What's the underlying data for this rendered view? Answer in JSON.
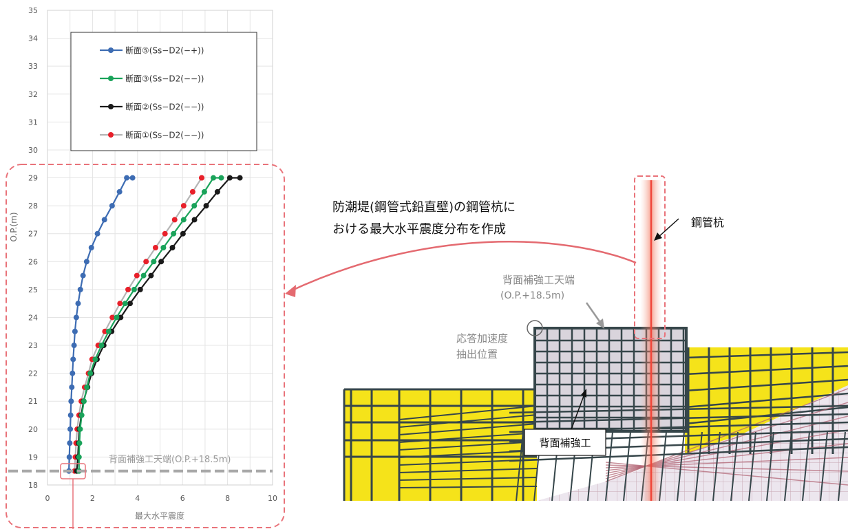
{
  "chart_data": {
    "type": "line",
    "xlabel": "最大水平震度",
    "ylabel": "O.P.(m)",
    "xlim": [
      0,
      10
    ],
    "ylim": [
      18,
      35
    ],
    "xticks": [
      0,
      2,
      4,
      6,
      8,
      10
    ],
    "yticks": [
      18,
      19,
      20,
      21,
      22,
      23,
      24,
      25,
      26,
      27,
      28,
      29,
      30,
      31,
      32,
      33,
      34,
      35
    ],
    "grid": true,
    "legend_position": "top-center",
    "series": [
      {
        "name": "断面⑤(Ss−D2(−+))",
        "color": "#3d6cb3",
        "marker_color": "#3d6cb3",
        "x": [
          0.95,
          0.97,
          0.99,
          1.01,
          1.03,
          1.05,
          1.08,
          1.11,
          1.14,
          1.18,
          1.22,
          1.28,
          1.36,
          1.46,
          1.58,
          1.74,
          1.95,
          2.22,
          2.53,
          2.87,
          3.2,
          3.52,
          3.78
        ],
        "y": [
          18.5,
          19.0,
          19.5,
          20.0,
          20.5,
          21.0,
          21.5,
          22.0,
          22.5,
          23.0,
          23.5,
          24.0,
          24.5,
          25.0,
          25.5,
          26.0,
          26.5,
          27.0,
          27.5,
          28.0,
          28.5,
          29.0,
          29.0
        ]
      },
      {
        "name": "断面③(Ss−D2(−−))",
        "color": "#1aa35a",
        "marker_color": "#1aa35a",
        "x": [
          1.4,
          1.4,
          1.42,
          1.45,
          1.52,
          1.62,
          1.75,
          1.9,
          2.12,
          2.4,
          2.72,
          3.07,
          3.45,
          3.85,
          4.27,
          4.72,
          5.15,
          5.6,
          6.05,
          6.52,
          6.97,
          7.37,
          7.72
        ],
        "y": [
          18.5,
          19.0,
          19.5,
          20.0,
          20.5,
          21.0,
          21.5,
          22.0,
          22.5,
          23.0,
          23.5,
          24.0,
          24.5,
          25.0,
          25.5,
          26.0,
          26.5,
          27.0,
          27.5,
          28.0,
          28.5,
          29.0,
          29.0
        ]
      },
      {
        "name": "断面②(Ss−D2(−−))",
        "color": "#1a1a1a",
        "marker_color": "#1a1a1a",
        "x": [
          1.3,
          1.35,
          1.38,
          1.42,
          1.5,
          1.6,
          1.78,
          1.96,
          2.2,
          2.5,
          2.85,
          3.25,
          3.67,
          4.12,
          4.6,
          5.05,
          5.55,
          6.02,
          6.53,
          7.05,
          7.55,
          8.1,
          8.55
        ],
        "y": [
          18.5,
          19.0,
          19.5,
          20.0,
          20.5,
          21.0,
          21.5,
          22.0,
          22.5,
          23.0,
          23.5,
          24.0,
          24.5,
          25.0,
          25.5,
          26.0,
          26.5,
          27.0,
          27.5,
          28.0,
          28.5,
          29.0,
          29.0
        ]
      },
      {
        "name": "断面①(Ss−D2(−−))",
        "color": "#b4b4b4",
        "marker_color": "#e8202a",
        "x": [
          1.2,
          1.24,
          1.27,
          1.32,
          1.4,
          1.5,
          1.65,
          1.82,
          1.98,
          2.25,
          2.55,
          2.88,
          3.22,
          3.58,
          3.97,
          4.38,
          4.8,
          5.22,
          5.65,
          6.05,
          6.45,
          6.85,
          6.85
        ],
        "y": [
          18.5,
          19.0,
          19.5,
          20.0,
          20.5,
          21.0,
          21.5,
          22.0,
          22.5,
          23.0,
          23.5,
          24.0,
          24.5,
          25.0,
          25.5,
          26.0,
          26.5,
          27.0,
          27.5,
          28.0,
          28.5,
          29.0,
          29.0
        ]
      }
    ],
    "reference_line": {
      "y": 18.5,
      "label": "背面補強工天端(O.P.+18.5m)",
      "color": "#a8a8a8"
    }
  },
  "annotations": {
    "callout_line1": "防潮堤(鋼管式鉛直壁)の鋼管杭に",
    "callout_line2": "おける最大水平震度分布を作成",
    "pile_label": "鋼管杭",
    "top_label_line1": "背面補強工天端",
    "top_label_line2": "(O.P.+18.5m)",
    "extract_line1": "応答加速度",
    "extract_line2": "抽出位置",
    "reinforce_label": "背面補強工"
  },
  "colors": {
    "dash_red": "#e9737a",
    "callout_red": "#e46a70",
    "fill_yellow": "#f5e31a",
    "mesh_dark": "#36464a",
    "block_grey": "#d9d4dc",
    "pile_red": "#f0463a"
  }
}
